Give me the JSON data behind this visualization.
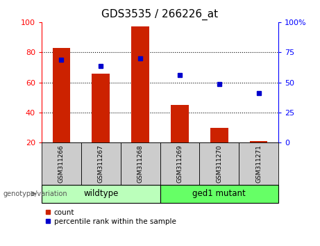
{
  "title": "GDS3535 / 266226_at",
  "samples": [
    "GSM311266",
    "GSM311267",
    "GSM311268",
    "GSM311269",
    "GSM311270",
    "GSM311271"
  ],
  "counts": [
    83,
    66,
    97,
    45,
    30,
    21
  ],
  "percentile_ranks_left_scale": [
    75,
    71,
    76,
    65,
    59,
    53
  ],
  "count_baseline": 20,
  "ylim_left": [
    20,
    100
  ],
  "yticks_left": [
    20,
    40,
    60,
    80,
    100
  ],
  "yticks_right_pos": [
    20,
    40,
    60,
    80,
    100
  ],
  "yticklabels_right": [
    "0",
    "25",
    "50",
    "75",
    "100%"
  ],
  "wildtype_label": "wildtype",
  "mutant_label": "ged1 mutant",
  "genotype_label": "genotype/variation",
  "bar_color": "#cc2200",
  "dot_color": "#0000cc",
  "wildtype_color": "#bbffbb",
  "mutant_color": "#66ff66",
  "tick_bg_color": "#cccccc",
  "legend_count_label": "count",
  "legend_pct_label": "percentile rank within the sample",
  "title_fontsize": 11,
  "tick_fontsize": 8,
  "label_fontsize": 8
}
